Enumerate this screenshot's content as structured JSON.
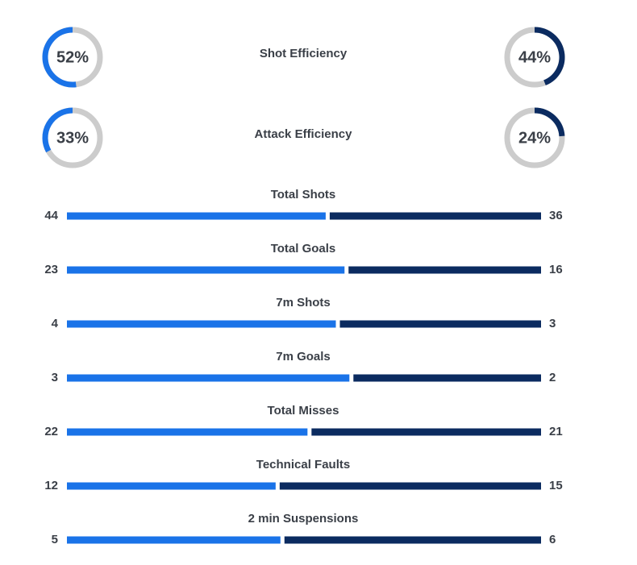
{
  "efficiency": [
    {
      "label": "Shot Efficiency",
      "home": {
        "value": 52,
        "label": "52%"
      },
      "away": {
        "value": 44,
        "label": "44%"
      }
    },
    {
      "label": "Attack Efficiency",
      "home": {
        "value": 33,
        "label": "33%"
      },
      "away": {
        "value": 24,
        "label": "24%"
      }
    }
  ],
  "stats": [
    {
      "label": "Total Shots",
      "home": 44,
      "away": 36
    },
    {
      "label": "Total Goals",
      "home": 23,
      "away": 16
    },
    {
      "label": "7m Shots",
      "home": 4,
      "away": 3
    },
    {
      "label": "7m Goals",
      "home": 3,
      "away": 2
    },
    {
      "label": "Total Misses",
      "home": 22,
      "away": 21
    },
    {
      "label": "Technical Faults",
      "home": 12,
      "away": 15
    },
    {
      "label": "2 min Suspensions",
      "home": 5,
      "away": 6
    }
  ],
  "colors": {
    "home": "#1a73e8",
    "away": "#0b2b60",
    "track": "#cccccc"
  }
}
